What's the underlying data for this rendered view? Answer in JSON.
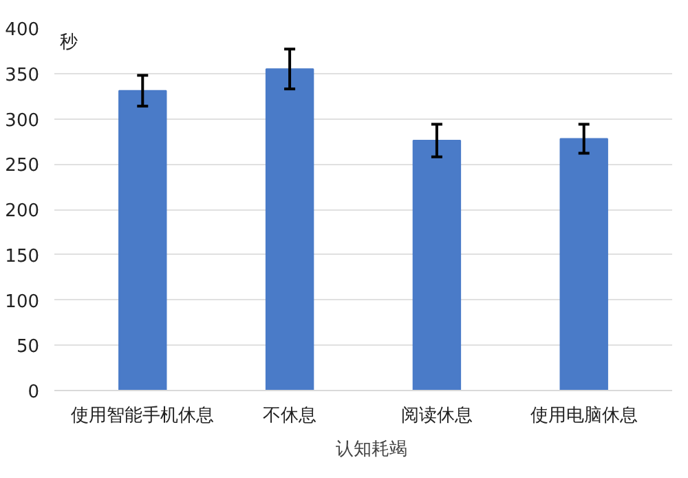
{
  "chart_data": {
    "type": "bar",
    "ylabel": "秒",
    "categories": [
      "使用智能手机休息",
      "不休息",
      "阅读休息",
      "使用电脑休息"
    ],
    "series": [
      {
        "name": "认知耗竭",
        "color": "#4a7bc8",
        "values": [
          331,
          355,
          276,
          278
        ],
        "errors": [
          17,
          22,
          18,
          16
        ]
      }
    ],
    "ylim": [
      0,
      400
    ],
    "yticks": [
      0,
      50,
      100,
      150,
      200,
      250,
      300,
      350,
      400
    ],
    "grid": "y",
    "legend": "bottom"
  }
}
